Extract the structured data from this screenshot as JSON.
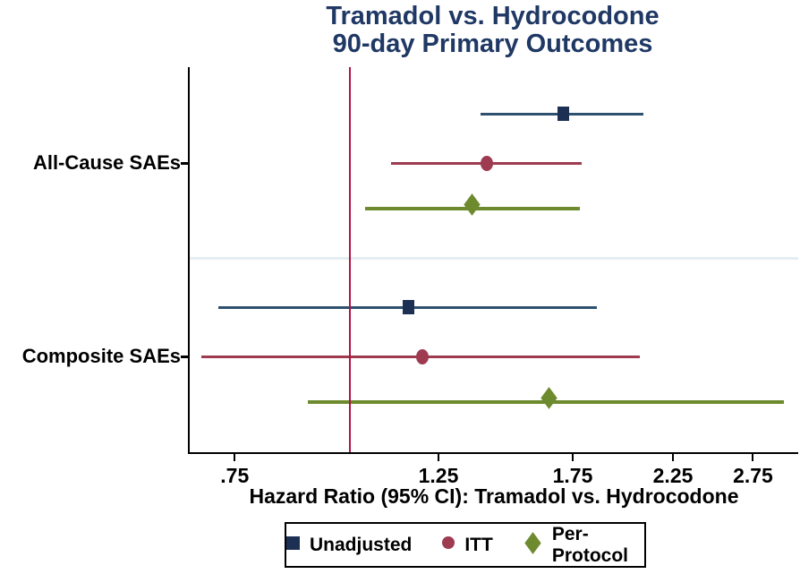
{
  "chart_data": {
    "type": "forest",
    "title": "Tramadol vs. Hydrocodone",
    "subtitle": "90-day Primary Outcomes",
    "xlabel": "Hazard Ratio (95% CI): Tramadol vs. Hydrocodone",
    "x_scale": "log",
    "xlim": [
      0.67,
      3.08
    ],
    "x_ticks": [
      0.75,
      1.25,
      1.75,
      2.25,
      2.75
    ],
    "x_tick_labels": [
      ".75",
      "1.25",
      "1.75",
      "2.25",
      "2.75"
    ],
    "reference_line_value": 1.0,
    "legend_position": "bottom",
    "grid": false,
    "groups": [
      {
        "label": "All-Cause SAEs",
        "estimates": [
          {
            "series": "Unadjusted",
            "hr": 1.71,
            "ci_low": 1.39,
            "ci_high": 2.09
          },
          {
            "series": "ITT",
            "hr": 1.41,
            "ci_low": 1.11,
            "ci_high": 1.79
          },
          {
            "series": "Per-Protocol",
            "hr": 1.36,
            "ci_low": 1.04,
            "ci_high": 1.78
          }
        ]
      },
      {
        "label": "Composite SAEs",
        "estimates": [
          {
            "series": "Unadjusted",
            "hr": 1.16,
            "ci_low": 0.72,
            "ci_high": 1.86
          },
          {
            "series": "ITT",
            "hr": 1.2,
            "ci_low": 0.69,
            "ci_high": 2.07
          },
          {
            "series": "Per-Protocol",
            "hr": 1.65,
            "ci_low": 0.9,
            "ci_high": 2.97
          }
        ]
      }
    ],
    "series": [
      {
        "name": "Unadjusted",
        "marker": "square",
        "marker_color": "#1b3053",
        "line_color": "#2e5170",
        "line_width": 3
      },
      {
        "name": "ITT",
        "marker": "circle",
        "marker_color": "#9e3b50",
        "line_color": "#9e3b50",
        "line_width": 3
      },
      {
        "name": "Per-Protocol",
        "marker": "diamond",
        "marker_color": "#6d8b2e",
        "line_color": "#6d8b2e",
        "line_width": 4
      }
    ]
  },
  "colors": {
    "title": "#1f3864",
    "reference_line": "#b01346",
    "group_separator": "#e4edf2",
    "axis": "#000000",
    "background": "#ffffff"
  }
}
